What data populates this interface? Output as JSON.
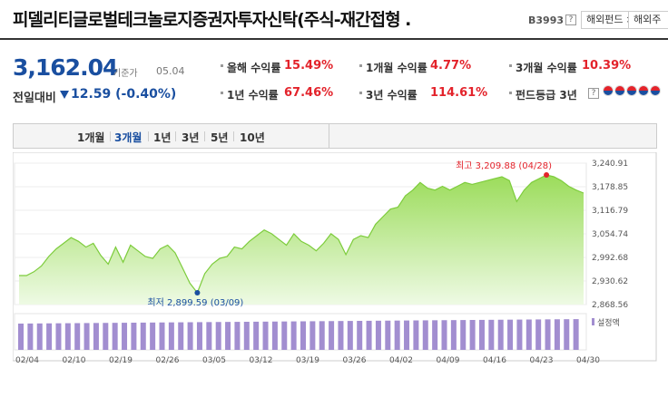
{
  "header": {
    "title": "피델리티글로벌테크놀로지증권자투자신탁(주식-재간접형 .",
    "code": "B3993",
    "help": "?",
    "breadcrumb1": "해외펀드 >",
    "breadcrumb2": "해외주"
  },
  "summary": {
    "price": "3,162.04",
    "base_label": "기준가",
    "base_date": "05.04",
    "change_label": "전일대비",
    "change_value": "12.59 (-0.40%)"
  },
  "stats": {
    "ytd_label": "올해 수익률",
    "ytd_value": "15.49%",
    "m1_label": "1개월 수익률",
    "m1_value": "4.77%",
    "m3_label": "3개월 수익률",
    "m3_value": "10.39%",
    "y1_label": "1년 수익률",
    "y1_value": "67.46%",
    "y3_label": "3년 수익률",
    "y3_value": "114.61%",
    "grade_label": "펀드등급 3년",
    "grade_help": "?",
    "grade_icon": "taegeuk-icon"
  },
  "periods": [
    "1개월",
    "3개월",
    "1년",
    "3년",
    "5년",
    "10년"
  ],
  "active_period": "3개월",
  "colors": {
    "accent_blue": "#1a4fa0",
    "accent_red": "#e3232b",
    "line_green": "#7dcc3c",
    "bar_purple": "#a28ed0"
  },
  "chart_data": {
    "type": "area",
    "y_ticks": [
      "3,240.91",
      "3,178.85",
      "3,116.79",
      "3,054.74",
      "2,992.68",
      "2,930.62",
      "2,868.56"
    ],
    "ylim": [
      2868.56,
      3240.91
    ],
    "x_labels": [
      "02/04",
      "02/10",
      "02/19",
      "02/26",
      "03/05",
      "03/12",
      "03/19",
      "03/26",
      "04/02",
      "04/09",
      "04/16",
      "04/23",
      "04/30"
    ],
    "values": [
      2945,
      2945,
      2955,
      2970,
      2995,
      3015,
      3030,
      3045,
      3035,
      3020,
      3030,
      2998,
      2975,
      3020,
      2980,
      3025,
      3010,
      2995,
      2990,
      3015,
      3025,
      3005,
      2965,
      2925,
      2899.59,
      2950,
      2975,
      2990,
      2995,
      3020,
      3015,
      3035,
      3050,
      3065,
      3055,
      3040,
      3025,
      3055,
      3035,
      3025,
      3010,
      3030,
      3055,
      3040,
      3000,
      3040,
      3050,
      3045,
      3080,
      3100,
      3120,
      3125,
      3155,
      3170,
      3190,
      3175,
      3170,
      3180,
      3170,
      3180,
      3190,
      3185,
      3190,
      3195,
      3200,
      3205,
      3195,
      3140,
      3170,
      3190,
      3200,
      3209.88,
      3205,
      3195,
      3180,
      3170,
      3162.04
    ],
    "max_label": "최고 3,209.88 (04/28)",
    "min_label": "최저 2,899.59 (03/09)",
    "volume_legend": "설정액"
  }
}
